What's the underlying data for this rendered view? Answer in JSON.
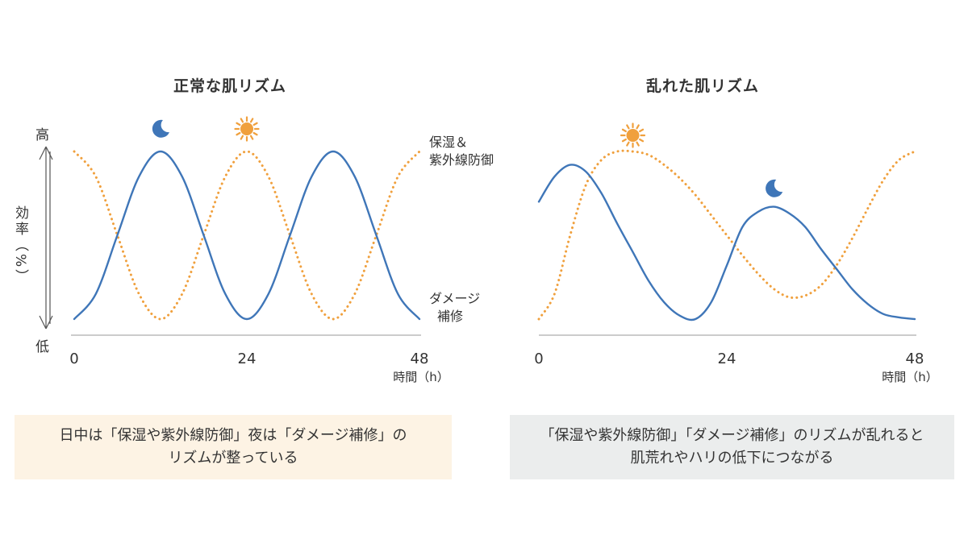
{
  "colors": {
    "blue": "#3f76b8",
    "orange": "#f0a03d",
    "axis": "#999999"
  },
  "icons": {
    "moon": "moon-icon",
    "sun": "sun-icon"
  },
  "y_axis": {
    "label": "効率（%）",
    "high": "高",
    "low": "低"
  },
  "chart_data": [
    {
      "type": "line",
      "title": "正常な肌リズム",
      "xlabel": "時間（h）",
      "ylabel": "効率（%）",
      "xlim": [
        0,
        48
      ],
      "ylim": [
        0,
        100
      ],
      "xticks": [
        0,
        24,
        48
      ],
      "series": [
        {
          "name": "ダメージ補修",
          "style": "solid",
          "color": "#3f76b8",
          "x": [
            0,
            3,
            6,
            9,
            12,
            15,
            18,
            21,
            24,
            27,
            30,
            33,
            36,
            39,
            42,
            45,
            48
          ],
          "y": [
            0,
            15,
            50,
            85,
            100,
            85,
            50,
            15,
            0,
            15,
            50,
            85,
            100,
            85,
            50,
            15,
            0
          ]
        },
        {
          "name": "保湿＆紫外線防御",
          "style": "dotted",
          "color": "#f0a03d",
          "x": [
            0,
            3,
            6,
            9,
            12,
            15,
            18,
            21,
            24,
            27,
            30,
            33,
            36,
            39,
            42,
            45,
            48
          ],
          "y": [
            100,
            85,
            50,
            15,
            0,
            15,
            50,
            85,
            100,
            85,
            50,
            15,
            0,
            15,
            50,
            85,
            100
          ]
        }
      ],
      "annotations": [
        {
          "icon": "moon",
          "x": 12
        },
        {
          "icon": "sun",
          "x": 24
        }
      ],
      "series_labels": {
        "protect": [
          "保湿＆",
          "紫外線防御"
        ],
        "repair": [
          "ダメージ",
          "補修"
        ]
      }
    },
    {
      "type": "line",
      "title": "乱れた肌リズム",
      "xlabel": "時間（h）",
      "xlim": [
        0,
        48
      ],
      "ylim": [
        0,
        100
      ],
      "xticks": [
        0,
        24,
        48
      ],
      "series": [
        {
          "name": "ダメージ補修",
          "style": "solid",
          "color": "#3f76b8",
          "x": [
            0,
            2,
            4,
            6,
            8,
            10,
            12,
            14,
            16,
            18,
            20,
            22,
            24,
            26,
            28,
            30,
            32,
            34,
            36,
            38,
            40,
            42,
            44,
            46,
            48
          ],
          "y": [
            70,
            85,
            92,
            88,
            75,
            57,
            40,
            23,
            10,
            2,
            0,
            10,
            32,
            55,
            64,
            67,
            63,
            55,
            42,
            30,
            18,
            9,
            3,
            1,
            0
          ]
        },
        {
          "name": "保湿＆紫外線防御",
          "style": "dotted",
          "color": "#f0a03d",
          "x": [
            0,
            2,
            4,
            6,
            8,
            10,
            12,
            14,
            16,
            18,
            20,
            22,
            24,
            26,
            28,
            30,
            32,
            34,
            36,
            38,
            40,
            42,
            44,
            46,
            48
          ],
          "y": [
            0,
            15,
            50,
            80,
            95,
            100,
            100,
            98,
            92,
            84,
            74,
            62,
            50,
            38,
            27,
            18,
            13,
            14,
            20,
            32,
            48,
            66,
            83,
            95,
            100
          ]
        }
      ],
      "annotations": [
        {
          "icon": "sun",
          "x": 12
        },
        {
          "icon": "moon",
          "x": 30
        }
      ]
    }
  ],
  "captions": {
    "left": [
      "日中は「保湿や紫外線防御」夜は「ダメージ補修」の",
      "リズムが整っている"
    ],
    "right": [
      "「保湿や紫外線防御」「ダメージ補修」のリズムが乱れると",
      "肌荒れやハリの低下につながる"
    ]
  }
}
